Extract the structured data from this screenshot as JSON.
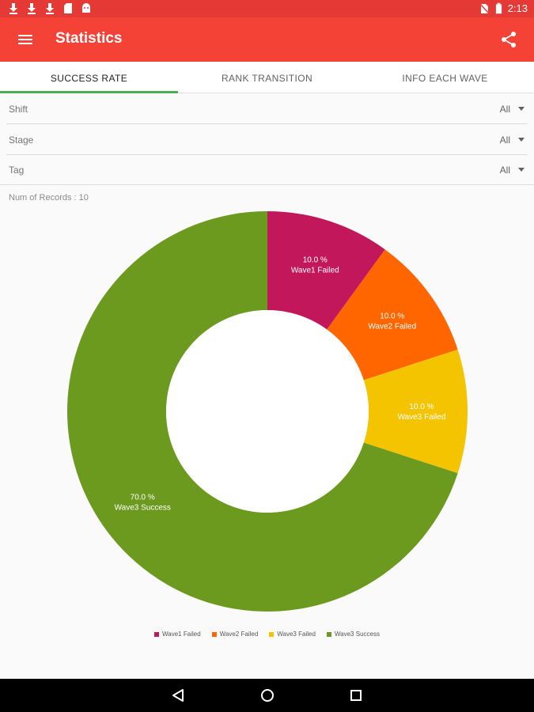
{
  "status_bar": {
    "time": "2:13",
    "icons": [
      "download-icon",
      "download-icon",
      "download-icon",
      "sd-card-icon",
      "android-icon"
    ],
    "right_icons": [
      "no-sim-icon",
      "battery-icon"
    ]
  },
  "app_bar": {
    "title": "Statistics",
    "menu_icon": "hamburger-menu-icon",
    "share_icon": "share-icon",
    "color": "#f44336"
  },
  "tabs": [
    {
      "label": "SUCCESS RATE",
      "active": true
    },
    {
      "label": "RANK TRANSITION",
      "active": false
    },
    {
      "label": "INFO EACH WAVE",
      "active": false
    }
  ],
  "filters": [
    {
      "label": "Shift",
      "value": "All"
    },
    {
      "label": "Stage",
      "value": "All"
    },
    {
      "label": "Tag",
      "value": "All"
    }
  ],
  "records_text": "Num of Records : 10",
  "chart_data": {
    "type": "pie",
    "donut": true,
    "categories": [
      "Wave1 Failed",
      "Wave2 Failed",
      "Wave3 Failed",
      "Wave3 Success"
    ],
    "values": [
      10.0,
      10.0,
      10.0,
      70.0
    ],
    "value_labels": [
      "10.0 %",
      "10.0 %",
      "10.0 %",
      "70.0 %"
    ],
    "colors": [
      "#c2185b",
      "#ff6600",
      "#f5c400",
      "#6b9a1e"
    ],
    "legend": "bottom-center"
  },
  "nav_bar": {
    "icons": [
      "back-icon",
      "home-icon",
      "recents-icon"
    ]
  }
}
